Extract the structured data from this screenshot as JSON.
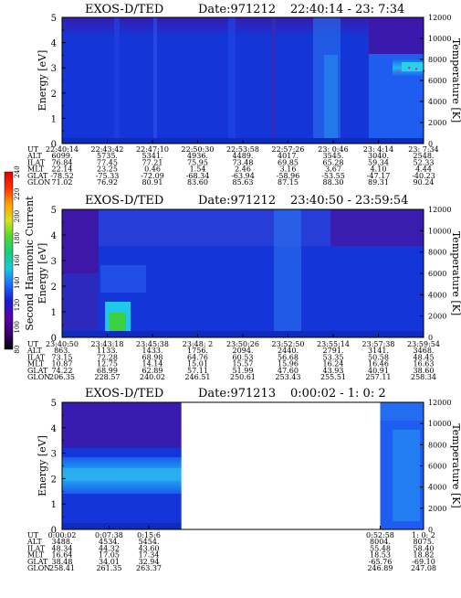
{
  "chart_data": [
    {
      "type": "heatmap",
      "title": "EXOS-D/TED",
      "date_label": "Date:971212",
      "time_range": "22:40:14 - 23: 7:34",
      "ylabel": "Energy [eV]",
      "ylabel_right": "Temperature [K]",
      "ylim": [
        0,
        5
      ],
      "ylim_right": [
        0,
        12000
      ],
      "y_ticks": [
        "0",
        "1",
        "2",
        "3",
        "4",
        "5"
      ],
      "y_ticks_right": [
        "0",
        "2000",
        "4000",
        "6000",
        "8000",
        "10000",
        "12000"
      ],
      "data_present": [
        [
          0,
          1
        ]
      ],
      "temperature_trace": [
        [
          0.93,
          6800
        ],
        [
          0.96,
          7200
        ],
        [
          0.98,
          7100
        ],
        [
          1.0,
          6900
        ]
      ],
      "ephemeris": {
        "labels": [
          "UT",
          "ALT",
          "ILAT",
          "MLT",
          "GLAT",
          "GLON"
        ],
        "columns": [
          [
            "22:40:14",
            "6099.",
            "76.84",
            "22.14",
            "-78.52",
            "71.02"
          ],
          [
            "22:43:42",
            "5735.",
            "77.45",
            "23.25",
            "-75.33",
            "76.92"
          ],
          [
            "22:47:10",
            "5341.",
            "77.21",
            "0.46",
            "-72.09",
            "80.91"
          ],
          [
            "22:50:30",
            "4936.",
            "75.95",
            "1.54",
            "-68.34",
            "83.60"
          ],
          [
            "22:53:58",
            "4489.",
            "73.48",
            "2.46",
            "-63.94",
            "85.63"
          ],
          [
            "22:57:26",
            "4017.",
            "69.85",
            "3.16",
            "-58.96",
            "87.15"
          ],
          [
            "23: 0:46",
            "3545.",
            "65.28",
            "3.67",
            "-53.55",
            "88.30"
          ],
          [
            "23: 4:14",
            "3040.",
            "59.34",
            "4.10",
            "-47.17",
            "89.31"
          ],
          [
            "23: 7:34",
            "2548.",
            "52.33",
            "4.44",
            "-40.23",
            "90.24"
          ]
        ]
      }
    },
    {
      "type": "heatmap",
      "title": "EXOS-D/TED",
      "date_label": "Date:971212",
      "time_range": "23:40:50 - 23:59:54",
      "ylabel": "Energy [eV]",
      "ylabel_right": "Temperature [K]",
      "ylim": [
        0,
        5
      ],
      "ylim_right": [
        0,
        12000
      ],
      "y_ticks": [
        "0",
        "1",
        "2",
        "3",
        "4",
        "5"
      ],
      "y_ticks_right": [
        "0",
        "2000",
        "4000",
        "6000",
        "8000",
        "10000",
        "12000"
      ],
      "data_present": [
        [
          0,
          1
        ]
      ],
      "ephemeris": {
        "labels": [
          "UT",
          "ALT",
          "ILAT",
          "MLT",
          "GLAT",
          "GLON"
        ],
        "columns": [
          [
            "23:40:50",
            "863.",
            "73.15",
            "10.87",
            "74.22",
            "206.35"
          ],
          [
            "23:43:18",
            "1133.",
            "72.28",
            "12.75",
            "68.99",
            "228.57"
          ],
          [
            "23:45:38",
            "1433.",
            "68.98",
            "14.14",
            "62.89",
            "240.02"
          ],
          [
            "23:48: 2",
            "1756.",
            "64.76",
            "15.01",
            "57.11",
            "246.51"
          ],
          [
            "23:50:26",
            "2094.",
            "60.53",
            "15.57",
            "51.99",
            "250.61"
          ],
          [
            "23:52:50",
            "2440.",
            "56.68",
            "15.96",
            "47.60",
            "253.43"
          ],
          [
            "23:55:14",
            "2791.",
            "53.35",
            "16.24",
            "43.93",
            "255.51"
          ],
          [
            "23:57:38",
            "3141.",
            "50.58",
            "16.46",
            "40.91",
            "257.11"
          ],
          [
            "23:59:54",
            "3468.",
            "48.45",
            "16.63",
            "38.60",
            "258.34"
          ]
        ]
      }
    },
    {
      "type": "heatmap",
      "title": "EXOS-D/TED",
      "date_label": "Date:971213",
      "time_range": "0:00:02 - 1: 0: 2",
      "ylabel": "Energy [eV]",
      "ylabel_right": "Temperature [K]",
      "ylim": [
        0,
        5
      ],
      "ylim_right": [
        0,
        12000
      ],
      "y_ticks": [
        "0",
        "1",
        "2",
        "3",
        "4",
        "5"
      ],
      "y_ticks_right": [
        "0",
        "2000",
        "4000",
        "6000",
        "8000",
        "10000",
        "12000"
      ],
      "data_present": [
        [
          0,
          0.33
        ],
        [
          0.88,
          1
        ]
      ],
      "ephemeris": {
        "labels": [
          "UT",
          "ALT",
          "ILAT",
          "MLT",
          "GLAT",
          "GLON"
        ],
        "columns": [
          [
            "0:00:02",
            "3488.",
            "48.34",
            "16.64",
            "38.48",
            "258.41"
          ],
          [
            "0:07:38",
            "4534.",
            "44.32",
            "17.05",
            "34.01",
            "261.35"
          ],
          [
            "0:15:6",
            "5454.",
            "43.60",
            "17.34",
            "32.94",
            "263.37"
          ],
          [
            "0:52:58",
            "8004.",
            "55.48",
            "18.53",
            "-65.76",
            "246.89"
          ],
          [
            "1: 0: 2",
            "8075.",
            "58.40",
            "18.82",
            "-69.10",
            "247.08"
          ]
        ],
        "column_positions": [
          0,
          0.13,
          0.24,
          0.88,
          1
        ]
      }
    }
  ],
  "colorbar": {
    "label": "Second Harmonic Current",
    "ticks": [
      "80",
      "100",
      "120",
      "140",
      "160",
      "180",
      "200",
      "220",
      "240"
    ],
    "colors": [
      "#000000",
      "#3b0070",
      "#5a00a8",
      "#1a1ad0",
      "#1f6bff",
      "#18c8e0",
      "#14d07a",
      "#4fd82a",
      "#d8e020",
      "#ffa000",
      "#ff3000",
      "#e00000"
    ]
  },
  "colors": {
    "background_fill": "#1436d8",
    "purple_band": "#3d17a8",
    "light_blue": "#2a7df0",
    "cyan": "#1ec8ea",
    "green": "#3cd040",
    "red_dots": "#d83060"
  }
}
